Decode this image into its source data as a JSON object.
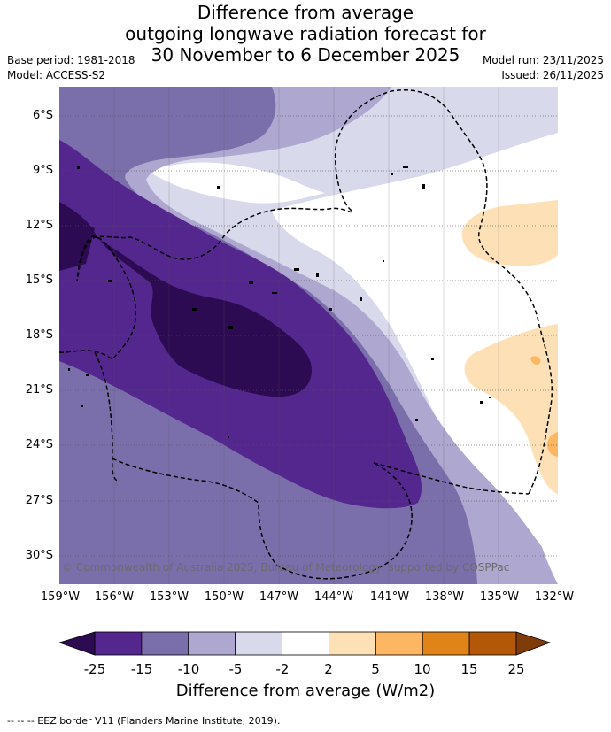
{
  "title": {
    "line1": "Difference from average",
    "line2": "outgoing longwave radiation forecast for",
    "line3": "30 November to 6 December 2025"
  },
  "meta": {
    "base_period": "Base period: 1981-2018",
    "model": "Model: ACCESS-S2",
    "model_run": "Model run: 23/11/2025",
    "issued": "Issued: 26/11/2025"
  },
  "map": {
    "lat_labels": [
      "6°S",
      "9°S",
      "12°S",
      "15°S",
      "18°S",
      "21°S",
      "24°S",
      "27°S",
      "30°S"
    ],
    "lon_labels": [
      "159°W",
      "156°W",
      "153°W",
      "150°W",
      "147°W",
      "144°W",
      "141°W",
      "138°W",
      "135°W",
      "132°W"
    ],
    "copyright": "© Commonwealth of Australia 2025, Bureau of Meteorology, supported by COSPPac"
  },
  "colorbar": {
    "ticks": [
      "-25",
      "-15",
      "-10",
      "-5",
      "-2",
      "2",
      "5",
      "10",
      "15",
      "25"
    ],
    "colors": {
      "below": "#2d0b52",
      "bins": [
        "#54278f",
        "#7b6fab",
        "#aea7d0",
        "#d9d9ec",
        "#ffffff",
        "#fde0b6",
        "#fdb662",
        "#e08418",
        "#b35806"
      ],
      "above": "#7f3b08"
    },
    "title": "Difference from average (W/m2)"
  },
  "legend": {
    "eez": "--  --  -- EEZ border V11 (Flanders Marine Institute, 2019)."
  }
}
